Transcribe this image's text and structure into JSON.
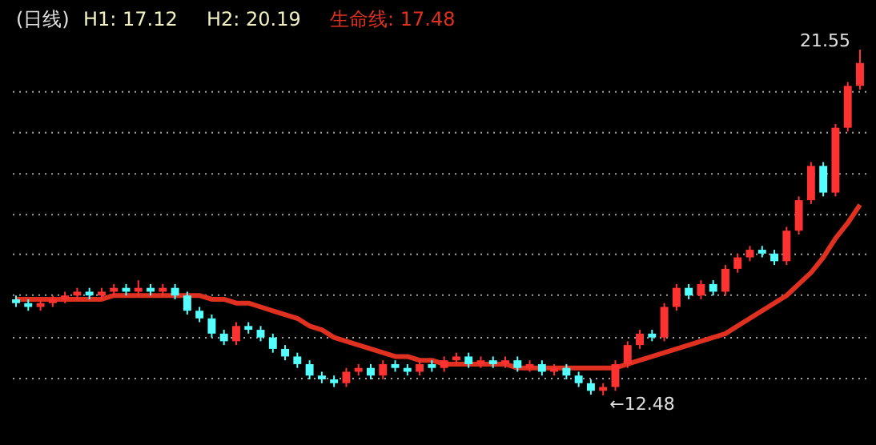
{
  "chart_data": {
    "type": "candlestick",
    "title": "(日线)",
    "categories": [
      null,
      null,
      null,
      null,
      null,
      null,
      null,
      null,
      null,
      null,
      null,
      null,
      null,
      null,
      null,
      null,
      null,
      null,
      null,
      null,
      null,
      null,
      null,
      null,
      null,
      null,
      null,
      null,
      null,
      null,
      null,
      null,
      null,
      null,
      null,
      null,
      null,
      null,
      null,
      null,
      null,
      null,
      null,
      null,
      null,
      null,
      null,
      null,
      null,
      null,
      null,
      null,
      null,
      null,
      null,
      null,
      null,
      null,
      null,
      null,
      null,
      null,
      null,
      null,
      null,
      null,
      null,
      null,
      null,
      null
    ],
    "ohlc": [
      [
        15.0,
        15.1,
        14.8,
        14.9
      ],
      [
        14.9,
        15.0,
        14.7,
        14.8
      ],
      [
        14.8,
        15.0,
        14.7,
        14.9
      ],
      [
        14.9,
        15.1,
        14.8,
        15.0
      ],
      [
        15.0,
        15.2,
        14.9,
        15.1
      ],
      [
        15.1,
        15.3,
        15.0,
        15.2
      ],
      [
        15.2,
        15.3,
        15.0,
        15.1
      ],
      [
        15.1,
        15.3,
        15.0,
        15.2
      ],
      [
        15.2,
        15.4,
        15.1,
        15.3
      ],
      [
        15.3,
        15.4,
        15.1,
        15.2
      ],
      [
        15.2,
        15.5,
        15.1,
        15.3
      ],
      [
        15.3,
        15.4,
        15.1,
        15.2
      ],
      [
        15.2,
        15.4,
        15.1,
        15.3
      ],
      [
        15.3,
        15.4,
        15.0,
        15.1
      ],
      [
        15.1,
        15.2,
        14.6,
        14.7
      ],
      [
        14.7,
        14.8,
        14.4,
        14.5
      ],
      [
        14.5,
        14.6,
        14.0,
        14.1
      ],
      [
        14.1,
        14.2,
        13.8,
        13.9
      ],
      [
        13.9,
        14.4,
        13.8,
        14.3
      ],
      [
        14.3,
        14.4,
        14.1,
        14.2
      ],
      [
        14.2,
        14.3,
        13.9,
        14.0
      ],
      [
        14.0,
        14.1,
        13.6,
        13.7
      ],
      [
        13.7,
        13.8,
        13.4,
        13.5
      ],
      [
        13.5,
        13.6,
        13.2,
        13.3
      ],
      [
        13.3,
        13.4,
        12.9,
        13.0
      ],
      [
        13.0,
        13.1,
        12.8,
        12.9
      ],
      [
        12.9,
        13.0,
        12.7,
        12.8
      ],
      [
        12.8,
        13.2,
        12.7,
        13.1
      ],
      [
        13.1,
        13.3,
        13.0,
        13.2
      ],
      [
        13.2,
        13.3,
        12.9,
        13.0
      ],
      [
        13.0,
        13.4,
        12.9,
        13.3
      ],
      [
        13.3,
        13.4,
        13.1,
        13.2
      ],
      [
        13.2,
        13.3,
        13.0,
        13.1
      ],
      [
        13.1,
        13.4,
        13.0,
        13.3
      ],
      [
        13.3,
        13.4,
        13.1,
        13.2
      ],
      [
        13.2,
        13.5,
        13.1,
        13.4
      ],
      [
        13.4,
        13.6,
        13.3,
        13.5
      ],
      [
        13.5,
        13.6,
        13.2,
        13.3
      ],
      [
        13.3,
        13.5,
        13.2,
        13.4
      ],
      [
        13.4,
        13.5,
        13.2,
        13.3
      ],
      [
        13.3,
        13.5,
        13.2,
        13.4
      ],
      [
        13.4,
        13.5,
        13.1,
        13.2
      ],
      [
        13.2,
        13.4,
        13.1,
        13.3
      ],
      [
        13.3,
        13.4,
        13.0,
        13.1
      ],
      [
        13.1,
        13.3,
        13.0,
        13.2
      ],
      [
        13.2,
        13.3,
        12.9,
        13.0
      ],
      [
        13.0,
        13.1,
        12.7,
        12.8
      ],
      [
        12.8,
        12.9,
        12.5,
        12.6
      ],
      [
        12.6,
        12.8,
        12.48,
        12.7
      ],
      [
        12.7,
        13.4,
        12.6,
        13.3
      ],
      [
        13.3,
        13.9,
        13.2,
        13.8
      ],
      [
        13.8,
        14.2,
        13.7,
        14.1
      ],
      [
        14.1,
        14.2,
        13.9,
        14.0
      ],
      [
        14.0,
        14.9,
        13.9,
        14.8
      ],
      [
        14.8,
        15.4,
        14.7,
        15.3
      ],
      [
        15.3,
        15.4,
        15.0,
        15.1
      ],
      [
        15.1,
        15.5,
        15.0,
        15.4
      ],
      [
        15.4,
        15.5,
        15.1,
        15.2
      ],
      [
        15.2,
        15.9,
        15.1,
        15.8
      ],
      [
        15.8,
        16.2,
        15.7,
        16.1
      ],
      [
        16.1,
        16.4,
        16.0,
        16.3
      ],
      [
        16.3,
        16.4,
        16.1,
        16.2
      ],
      [
        16.2,
        16.3,
        15.9,
        16.0
      ],
      [
        16.0,
        16.9,
        15.9,
        16.8
      ],
      [
        16.8,
        17.7,
        16.7,
        17.6
      ],
      [
        17.6,
        18.6,
        17.5,
        18.5
      ],
      [
        18.5,
        18.6,
        17.7,
        17.8
      ],
      [
        17.8,
        19.6,
        17.7,
        19.5
      ],
      [
        19.5,
        20.7,
        19.4,
        20.6
      ],
      [
        20.6,
        21.55,
        20.5,
        21.2
      ]
    ],
    "colors": [
      "#54ffff",
      "#54ffff",
      "#ff3232",
      "#ff3232",
      "#ff3232",
      "#ff3232",
      "#54ffff",
      "#ff3232",
      "#ff3232",
      "#54ffff",
      "#ff3232",
      "#54ffff",
      "#ff3232",
      "#54ffff",
      "#54ffff",
      "#54ffff",
      "#54ffff",
      "#54ffff",
      "#ff3232",
      "#54ffff",
      "#54ffff",
      "#54ffff",
      "#54ffff",
      "#54ffff",
      "#54ffff",
      "#54ffff",
      "#54ffff",
      "#ff3232",
      "#ff3232",
      "#54ffff",
      "#ff3232",
      "#54ffff",
      "#54ffff",
      "#ff3232",
      "#54ffff",
      "#ff3232",
      "#ff3232",
      "#54ffff",
      "#ff3232",
      "#54ffff",
      "#ff3232",
      "#54ffff",
      "#ff3232",
      "#54ffff",
      "#ff3232",
      "#54ffff",
      "#54ffff",
      "#54ffff",
      "#ff3232",
      "#ff3232",
      "#ff3232",
      "#ff3232",
      "#54ffff",
      "#ff3232",
      "#ff3232",
      "#54ffff",
      "#ff3232",
      "#54ffff",
      "#ff3232",
      "#ff3232",
      "#ff3232",
      "#54ffff",
      "#54ffff",
      "#ff3232",
      "#ff3232",
      "#ff3232",
      "#54ffff",
      "#ff3232",
      "#ff3232",
      "#ff3232"
    ],
    "series": [
      {
        "type": "line",
        "color": "#e03020",
        "line_style": "solid",
        "values": [
          15.0,
          15.0,
          15.0,
          15.0,
          15.0,
          15.0,
          15.0,
          15.0,
          15.1,
          15.1,
          15.1,
          15.1,
          15.1,
          15.1,
          15.1,
          15.1,
          15.0,
          15.0,
          14.9,
          14.9,
          14.8,
          14.7,
          14.6,
          14.5,
          14.3,
          14.2,
          14.0,
          13.9,
          13.8,
          13.7,
          13.6,
          13.5,
          13.5,
          13.4,
          13.4,
          13.3,
          13.3,
          13.3,
          13.3,
          13.3,
          13.3,
          13.2,
          13.2,
          13.2,
          13.2,
          13.2,
          13.2,
          13.2,
          13.2,
          13.2,
          13.3,
          13.4,
          13.5,
          13.6,
          13.7,
          13.8,
          13.9,
          14.0,
          14.1,
          14.3,
          14.5,
          14.7,
          14.9,
          15.1,
          15.4,
          15.7,
          16.1,
          16.6,
          17.0,
          17.48
        ]
      }
    ],
    "yticks": [
      {
        "value": 12.92,
        "label": null
      },
      {
        "value": 13.99,
        "label": null
      },
      {
        "value": 15.11,
        "label": null
      },
      {
        "value": 16.18,
        "label": null
      },
      {
        "value": 17.22,
        "label": null
      },
      {
        "value": 18.29,
        "label": null
      },
      {
        "value": 19.37,
        "label": null
      },
      {
        "value": 20.44,
        "label": null
      }
    ],
    "grid": "y",
    "tick_labels": false,
    "annotations": [
      "H1: 17.12",
      "H2: 20.19",
      "生命线: 17.48",
      "21.55",
      "←12.48"
    ]
  }
}
